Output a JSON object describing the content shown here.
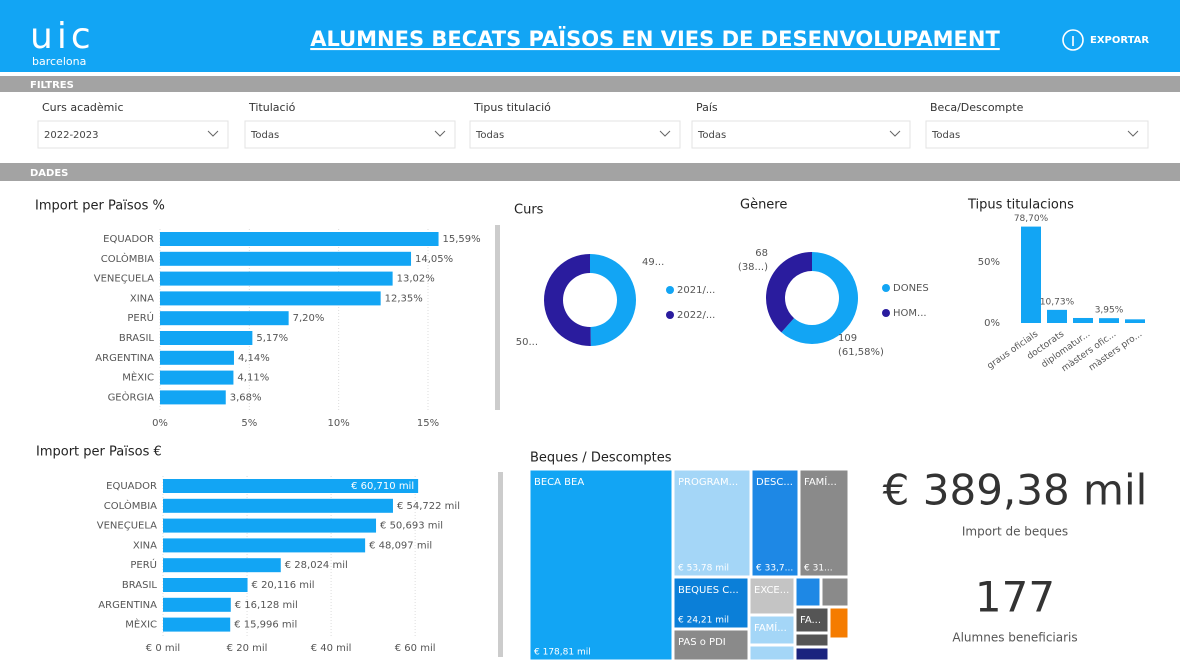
{
  "header": {
    "logo": "uic",
    "logo_subtitle": "barcelona",
    "title": "ALUMNES BECATS PAÏSOS EN VIES DE DESENVOLUPAMENT",
    "export": "EXPORTAR"
  },
  "filters": {
    "heading": "FILTRES",
    "items": [
      {
        "label": "Curs acadèmic",
        "value": "2022-2023"
      },
      {
        "label": "Titulació",
        "value": "Todas"
      },
      {
        "label": "Tipus titulació",
        "value": "Todas"
      },
      {
        "label": "País",
        "value": "Todas"
      },
      {
        "label": "Beca/Descompte",
        "value": "Todas"
      }
    ]
  },
  "data_heading": "DADES",
  "chart_data": [
    {
      "type": "hbar",
      "title": "Import per Països %",
      "categories": [
        "EQUADOR",
        "COLÒMBIA",
        "VENEÇUELA",
        "XINA",
        "PERÚ",
        "BRASIL",
        "ARGENTINA",
        "MÈXIC",
        "GEÒRGIA"
      ],
      "values": [
        15.59,
        14.05,
        13.02,
        12.35,
        7.2,
        5.17,
        4.14,
        4.11,
        3.68
      ],
      "value_labels": [
        "15,59%",
        "14,05%",
        "13,02%",
        "12,35%",
        "7,20%",
        "5,17%",
        "4,14%",
        "4,11%",
        "3,68%"
      ],
      "color": "#12a5f4",
      "xlim": [
        0,
        18.75
      ],
      "xticks": [
        {
          "value": 0,
          "label": "0%"
        },
        {
          "value": 5,
          "label": "5%"
        },
        {
          "value": 10,
          "label": "10%"
        },
        {
          "value": 15,
          "label": "15%"
        }
      ],
      "grid": true
    },
    {
      "type": "hbar",
      "title": "Import per Països €",
      "categories": [
        "EQUADOR",
        "COLÒMBIA",
        "VENEÇUELA",
        "XINA",
        "PERÚ",
        "BRASIL",
        "ARGENTINA",
        "MÈXIC"
      ],
      "values": [
        60.71,
        54.722,
        50.693,
        48.097,
        28.024,
        20.116,
        16.128,
        15.996
      ],
      "value_labels": [
        "€ 60,710 mil",
        "€ 54,722 mil",
        "€ 50,693 mil",
        "€ 48,097 mil",
        "€ 28,024 mil",
        "€ 20,116 mil",
        "€ 16,128 mil",
        "€ 15,996 mil"
      ],
      "color": "#12a5f4",
      "xlim": [
        0,
        79
      ],
      "xticks": [
        {
          "value": 0,
          "label": "€ 0 mil"
        },
        {
          "value": 20,
          "label": "€ 20 mil"
        },
        {
          "value": 40,
          "label": "€ 40 mil"
        },
        {
          "value": 60,
          "label": "€ 60 mil"
        }
      ],
      "grid": true
    },
    {
      "type": "donut",
      "title": "Curs",
      "categories": [
        "2021/...",
        "2022/..."
      ],
      "values": [
        49.7,
        50.3
      ],
      "value_labels": [
        "49...",
        "50..."
      ],
      "colors": [
        "#12a5f4",
        "#2a1c9e"
      ]
    },
    {
      "type": "donut",
      "title": "Gènere",
      "categories": [
        "DONES",
        "HOM..."
      ],
      "values": [
        109,
        68
      ],
      "value_labels": [
        "109",
        "68"
      ],
      "percent_labels": [
        "(61,58%)",
        "(38...)"
      ],
      "colors": [
        "#12a5f4",
        "#2a1c9e"
      ]
    },
    {
      "type": "vbar",
      "title": "Tipus titulacions",
      "categories": [
        "graus oficials",
        "doctorats",
        "diplomatur...",
        "màsters ofic...",
        "màsters pro..."
      ],
      "values": [
        78.7,
        10.73,
        4.1,
        3.95,
        3.0
      ],
      "value_labels": [
        "78,70%",
        "10,73%",
        null,
        "3,95%",
        null
      ],
      "color": "#12a5f4",
      "ylim": [
        0,
        80
      ],
      "yticks": [
        {
          "value": 0,
          "label": "0%"
        },
        {
          "value": 50,
          "label": "50%"
        }
      ]
    },
    {
      "type": "treemap",
      "title": "Beques / Descomptes",
      "categories": [
        "BECA BEA",
        "PROGRAM...",
        "DESC...",
        "FAMÍ...",
        "BEQUES C...",
        "PAS o PDI",
        "EXCE...",
        "FAMÍ...",
        null,
        null,
        null,
        "FA...",
        null,
        null,
        null
      ],
      "values": [
        178.81,
        53.78,
        33.7,
        31,
        24.21,
        13,
        11,
        9,
        5,
        5,
        5,
        6,
        4,
        3,
        3
      ],
      "value_labels": [
        "€ 178,81 mil",
        "€ 53,78 mil",
        "€ 33,7...",
        "€ 31...",
        "€ 24,21 mil",
        null,
        null,
        null,
        null,
        null,
        null,
        null,
        null,
        null,
        null
      ],
      "colors": [
        "#12a5f4",
        "#a4d6f7",
        "#1e88e5",
        "#8a8a8a",
        "#0b7fd8",
        "#8a8a8a",
        "#c4c4c4",
        "#a4d6f7",
        "#a4d6f7",
        "#1e88e5",
        "#8a8a8a",
        "#555555",
        "#f57c00",
        "#555555",
        "#1a237e"
      ]
    }
  ],
  "kpis": [
    {
      "value": "€ 389,38 mil",
      "label": "Import de beques"
    },
    {
      "value": "177",
      "label": "Alumnes beneficiaris"
    }
  ]
}
